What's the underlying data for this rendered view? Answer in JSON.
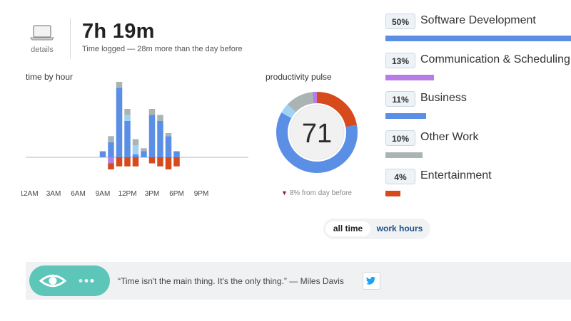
{
  "summary": {
    "details_label": "details",
    "total_time": "7h 19m",
    "subtitle": "Time logged — 28m more than the day before"
  },
  "time_by_hour": {
    "title": "time by hour",
    "x_labels": [
      "12AM",
      "3AM",
      "6AM",
      "9AM",
      "12PM",
      "3PM",
      "6PM",
      "9PM"
    ]
  },
  "productivity_pulse": {
    "title": "productivity pulse",
    "score": "71",
    "change_text": "8% from day before",
    "change_arrow": "▼"
  },
  "categories": [
    {
      "percent": "50%",
      "name": "Software Development",
      "color": "#5b8fe6",
      "share": 0.5
    },
    {
      "percent": "13%",
      "name": "Communication & Scheduling",
      "color": "#b77ce6",
      "share": 0.13
    },
    {
      "percent": "11%",
      "name": "Business",
      "color": "#5b8fe6",
      "share": 0.11
    },
    {
      "percent": "10%",
      "name": "Other Work",
      "color": "#aab5b3",
      "share": 0.1
    },
    {
      "percent": "4%",
      "name": "Entertainment",
      "color": "#d64a1c",
      "share": 0.04
    }
  ],
  "toggle": {
    "all_time": "all time",
    "work_hours": "work hours"
  },
  "quote": {
    "text": "“Time isn't the main thing. It's the only thing.” — Miles Davis"
  },
  "icons": {
    "details": "laptop-icon",
    "eye": "eye-icon",
    "more": "more-dots-icon",
    "share": "twitter-icon",
    "change": "down-arrow-icon"
  },
  "colors": {
    "very_productive": "#5b8fe6",
    "productive": "#9fd3f4",
    "neutral": "#aab5b3",
    "distracting": "#b77ce6",
    "very_distracting": "#d64a1c",
    "accent": "#5ec6b9"
  },
  "chart_data": [
    {
      "type": "bar",
      "title": "time by hour",
      "x_tick_labels": [
        "12AM",
        "3AM",
        "6AM",
        "9AM",
        "12PM",
        "3PM",
        "6PM",
        "9PM"
      ],
      "hours": [
        9,
        10,
        11,
        12,
        13,
        14,
        15,
        16,
        17,
        18,
        19
      ],
      "series": [
        {
          "color": "#5b8fe6",
          "values": [
            2,
            5,
            23,
            12,
            1,
            2,
            14,
            12,
            7,
            2,
            0
          ]
        },
        {
          "color": "#9fd3f4",
          "values": [
            0,
            0,
            0,
            2,
            3,
            0,
            0,
            0,
            0,
            0,
            0
          ]
        },
        {
          "color": "#aab5b3",
          "values": [
            0,
            2,
            2,
            2,
            2,
            1,
            2,
            2,
            1,
            0,
            0
          ]
        },
        {
          "color": "#b77ce6",
          "values": [
            0,
            -2,
            0,
            0,
            0,
            0,
            0,
            0,
            0,
            0,
            0
          ]
        },
        {
          "color": "#d64a1c",
          "values": [
            0,
            -2,
            -3,
            -3,
            -3,
            0,
            -2,
            -3,
            -4,
            -3,
            0
          ]
        }
      ]
    },
    {
      "type": "pie",
      "title": "productivity pulse",
      "center_value": 71,
      "slices": [
        {
          "color": "#5b8fe6",
          "share": 0.61
        },
        {
          "color": "#9fd3f4",
          "share": 0.04
        },
        {
          "color": "#aab5b3",
          "share": 0.11
        },
        {
          "color": "#b77ce6",
          "share": 0.02
        },
        {
          "color": "#d64a1c",
          "share": 0.22
        }
      ]
    }
  ]
}
